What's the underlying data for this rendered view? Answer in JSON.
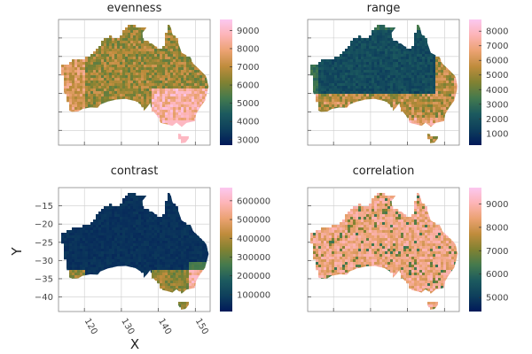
{
  "chart_data": {
    "type": "heatmap",
    "xlabel": "X",
    "ylabel": "Y",
    "grid": true,
    "shared_axes": {
      "x": {
        "range": [
          113,
          154
        ],
        "ticks": [
          120,
          130,
          140,
          150
        ],
        "tick_labels": [
          "120",
          "130",
          "140",
          "150"
        ]
      },
      "y": {
        "range": [
          -44,
          -10
        ],
        "ticks": [
          -40,
          -35,
          -30,
          -25,
          -20,
          -15
        ],
        "tick_labels": [
          "−40",
          "−35",
          "−30",
          "−25",
          "−20",
          "−15"
        ]
      }
    },
    "colormap": {
      "name": "batlow",
      "stops": [
        "#011959",
        "#0e3f5c",
        "#1c5a5e",
        "#447a4d",
        "#818232",
        "#bf8c3c",
        "#eba272",
        "#fdb4b6",
        "#fbc8f0"
      ]
    },
    "panels": [
      {
        "name": "evenness",
        "title": "evenness",
        "clim": [
          2700,
          9600
        ],
        "colorbar_ticks": [
          3000,
          4000,
          5000,
          6000,
          7000,
          8000,
          9000
        ],
        "colorbar_labels": [
          "3000",
          "4000",
          "5000",
          "6000",
          "7000",
          "8000",
          "9000"
        ]
      },
      {
        "name": "range",
        "title": "range",
        "clim": [
          200,
          8800
        ],
        "colorbar_ticks": [
          1000,
          2000,
          3000,
          4000,
          5000,
          6000,
          7000,
          8000
        ],
        "colorbar_labels": [
          "1000",
          "2000",
          "3000",
          "4000",
          "5000",
          "6000",
          "7000",
          "8000"
        ]
      },
      {
        "name": "contrast",
        "title": "contrast",
        "clim": [
          10000,
          670000
        ],
        "colorbar_ticks": [
          100000,
          200000,
          300000,
          400000,
          500000,
          600000
        ],
        "colorbar_labels": [
          "100000",
          "200000",
          "300000",
          "400000",
          "500000",
          "600000"
        ]
      },
      {
        "name": "correlation",
        "title": "correlation",
        "clim": [
          4400,
          9700
        ],
        "colorbar_ticks": [
          5000,
          6000,
          7000,
          8000,
          9000
        ],
        "colorbar_labels": [
          "5000",
          "6000",
          "7000",
          "8000",
          "9000"
        ]
      }
    ]
  }
}
